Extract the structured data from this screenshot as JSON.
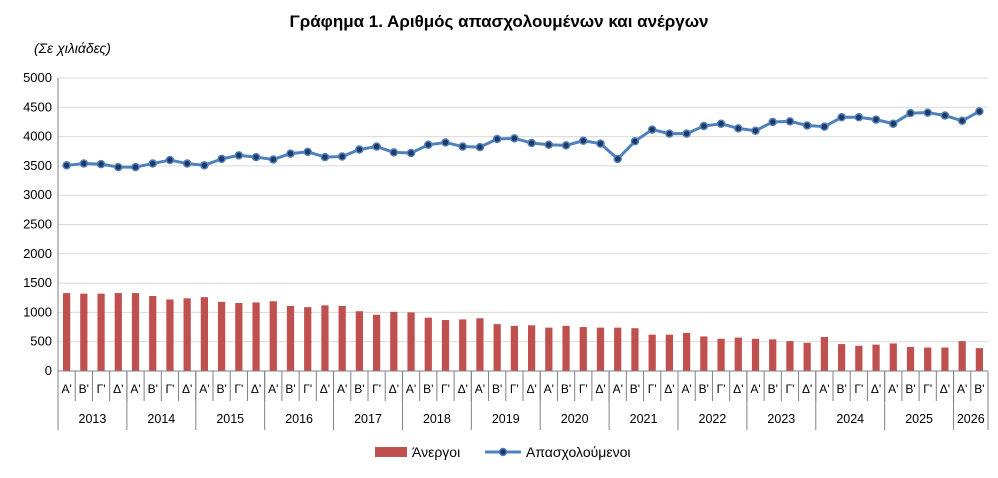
{
  "chart_data": {
    "type": "bar+line",
    "title": "Γράφημα 1. Αριθμός απασχολουμένων και ανέργων",
    "unit_label": "(Σε χιλιάδες)",
    "ylim": [
      0,
      5000
    ],
    "yticks": [
      0,
      500,
      1000,
      1500,
      2000,
      2500,
      3000,
      3500,
      4000,
      4500,
      5000
    ],
    "grid": "horizontal",
    "legend_position": "bottom-center",
    "years": [
      {
        "label": "2013",
        "n": 4
      },
      {
        "label": "2014",
        "n": 4
      },
      {
        "label": "2015",
        "n": 4
      },
      {
        "label": "2016",
        "n": 4
      },
      {
        "label": "2017",
        "n": 4
      },
      {
        "label": "2018",
        "n": 4
      },
      {
        "label": "2019",
        "n": 4
      },
      {
        "label": "2020",
        "n": 4
      },
      {
        "label": "2021",
        "n": 4
      },
      {
        "label": "2022",
        "n": 4
      },
      {
        "label": "2023",
        "n": 4
      },
      {
        "label": "2024",
        "n": 4
      },
      {
        "label": "2025",
        "n": 4
      },
      {
        "label": "2026",
        "n": 2
      }
    ],
    "quarter_labels": [
      "Α'",
      "Β'",
      "Γ'",
      "Δ'"
    ],
    "series": [
      {
        "name": "Άνεργοι",
        "kind": "bar",
        "color": "#c0504d",
        "values": [
          1330,
          1320,
          1320,
          1330,
          1330,
          1280,
          1220,
          1240,
          1260,
          1180,
          1160,
          1170,
          1190,
          1110,
          1090,
          1120,
          1110,
          1020,
          960,
          1010,
          1000,
          910,
          870,
          880,
          900,
          800,
          770,
          780,
          740,
          770,
          750,
          740,
          740,
          730,
          620,
          620,
          650,
          590,
          550,
          570,
          550,
          540,
          510,
          480,
          580,
          460,
          430,
          450,
          470,
          410,
          400,
          400,
          510,
          390
        ]
      },
      {
        "name": "Απασχολούμενοι",
        "kind": "line",
        "color": "#4f81bd",
        "marker_color": "#1f3864",
        "values": [
          3510,
          3540,
          3530,
          3480,
          3480,
          3540,
          3600,
          3540,
          3510,
          3620,
          3680,
          3650,
          3610,
          3710,
          3740,
          3650,
          3660,
          3780,
          3830,
          3730,
          3720,
          3860,
          3900,
          3830,
          3820,
          3960,
          3970,
          3890,
          3860,
          3850,
          3930,
          3880,
          3620,
          3920,
          4120,
          4050,
          4050,
          4180,
          4220,
          4140,
          4100,
          4250,
          4260,
          4190,
          4170,
          4330,
          4330,
          4290,
          4220,
          4400,
          4410,
          4360,
          4270,
          4430
        ]
      }
    ]
  }
}
